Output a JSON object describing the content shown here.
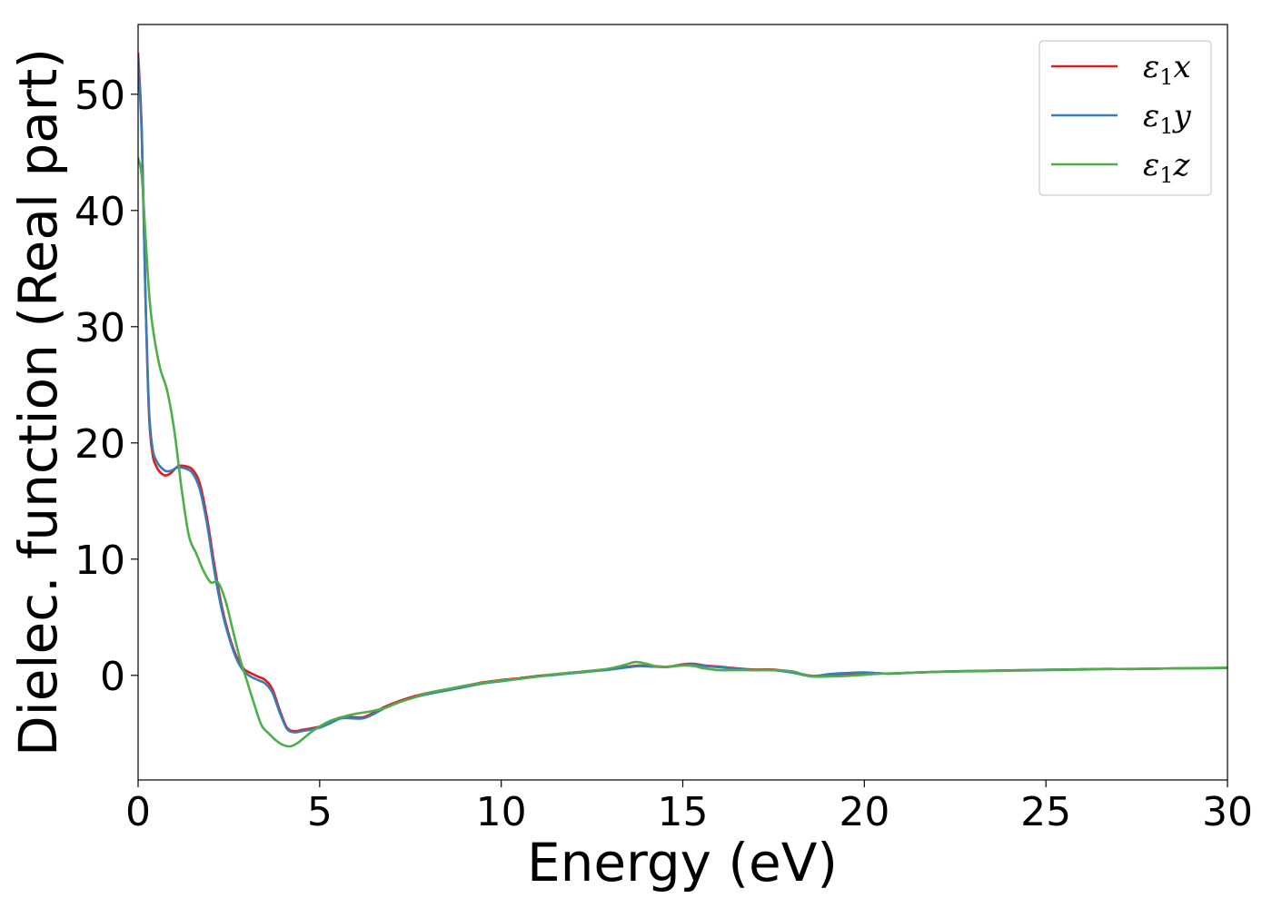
{
  "chart_data": {
    "type": "line",
    "title": "",
    "xlabel": "Energy (eV)",
    "ylabel": "Dielec. function (Real part)",
    "xlim": [
      0,
      30
    ],
    "ylim": [
      -9,
      56
    ],
    "xticks": [
      0,
      5,
      10,
      15,
      20,
      25,
      30
    ],
    "yticks": [
      0,
      10,
      20,
      30,
      40,
      50
    ],
    "grid": false,
    "legend_position": "top-right",
    "series": [
      {
        "name": "ε₁x",
        "legend": {
          "base": "ε",
          "sub": "1",
          "var": "x"
        },
        "color": "#e41a1c",
        "x": [
          0.0,
          0.1,
          0.2,
          0.3,
          0.4,
          0.5,
          0.6,
          0.75,
          0.9,
          1.1,
          1.3,
          1.5,
          1.7,
          1.9,
          2.1,
          2.3,
          2.5,
          2.7,
          2.9,
          3.1,
          3.3,
          3.5,
          3.7,
          3.9,
          4.1,
          4.3,
          4.5,
          4.7,
          5.0,
          5.3,
          5.6,
          5.9,
          6.2,
          6.5,
          6.8,
          7.2,
          7.6,
          8.0,
          8.5,
          9.0,
          9.5,
          10.0,
          10.5,
          11.0,
          11.5,
          12.0,
          12.5,
          13.0,
          13.5,
          13.8,
          14.2,
          14.6,
          15.0,
          15.3,
          15.6,
          16.0,
          16.5,
          17.0,
          17.5,
          18.0,
          18.3,
          18.6,
          19.0,
          19.5,
          20.0,
          20.3,
          20.7,
          21.5,
          22.5,
          23.5,
          24.5,
          25.5,
          26.5,
          27.5,
          28.5,
          29.5,
          30.0
        ],
        "y": [
          53.5,
          47.0,
          33.0,
          22.5,
          19.0,
          18.0,
          17.5,
          17.2,
          17.4,
          18.0,
          18.0,
          17.7,
          16.5,
          13.5,
          9.5,
          6.0,
          3.5,
          1.7,
          0.6,
          0.2,
          -0.1,
          -0.4,
          -1.2,
          -3.0,
          -4.5,
          -4.8,
          -4.7,
          -4.6,
          -4.4,
          -4.0,
          -3.6,
          -3.6,
          -3.6,
          -3.2,
          -2.7,
          -2.2,
          -1.8,
          -1.5,
          -1.2,
          -0.9,
          -0.6,
          -0.4,
          -0.25,
          -0.05,
          0.1,
          0.25,
          0.4,
          0.55,
          0.75,
          0.85,
          0.8,
          0.75,
          0.95,
          1.0,
          0.85,
          0.75,
          0.6,
          0.5,
          0.5,
          0.3,
          0.1,
          -0.05,
          0.05,
          0.1,
          0.2,
          0.2,
          0.15,
          0.25,
          0.35,
          0.4,
          0.45,
          0.5,
          0.55,
          0.55,
          0.6,
          0.62,
          0.65
        ]
      },
      {
        "name": "ε₁y",
        "legend": {
          "base": "ε",
          "sub": "1",
          "var": "y"
        },
        "color": "#377eb8",
        "x": [
          0.0,
          0.1,
          0.2,
          0.3,
          0.4,
          0.5,
          0.6,
          0.75,
          0.9,
          1.1,
          1.3,
          1.5,
          1.7,
          1.9,
          2.1,
          2.3,
          2.5,
          2.7,
          2.9,
          3.1,
          3.3,
          3.5,
          3.7,
          3.9,
          4.1,
          4.3,
          4.5,
          4.7,
          5.0,
          5.3,
          5.6,
          5.9,
          6.2,
          6.5,
          6.8,
          7.2,
          7.6,
          8.0,
          8.5,
          9.0,
          9.5,
          10.0,
          10.5,
          11.0,
          11.5,
          12.0,
          12.5,
          13.0,
          13.5,
          13.8,
          14.2,
          14.6,
          15.0,
          15.3,
          15.6,
          16.0,
          16.5,
          17.0,
          17.5,
          18.0,
          18.3,
          18.6,
          19.0,
          19.5,
          20.0,
          20.3,
          20.7,
          21.5,
          22.5,
          23.5,
          24.5,
          25.5,
          26.5,
          27.5,
          28.5,
          29.5,
          30.0
        ],
        "y": [
          53.0,
          46.5,
          33.0,
          23.0,
          19.5,
          18.5,
          18.0,
          17.6,
          17.6,
          17.9,
          17.8,
          17.4,
          16.0,
          13.0,
          9.0,
          5.7,
          3.3,
          1.5,
          0.4,
          -0.1,
          -0.4,
          -0.7,
          -1.5,
          -3.2,
          -4.6,
          -4.9,
          -4.8,
          -4.7,
          -4.5,
          -4.1,
          -3.7,
          -3.7,
          -3.7,
          -3.3,
          -2.8,
          -2.3,
          -1.9,
          -1.6,
          -1.3,
          -1.0,
          -0.7,
          -0.5,
          -0.3,
          -0.1,
          0.05,
          0.2,
          0.35,
          0.5,
          0.7,
          0.8,
          0.75,
          0.72,
          0.9,
          0.95,
          0.8,
          0.7,
          0.55,
          0.45,
          0.45,
          0.25,
          0.05,
          -0.1,
          0.1,
          0.2,
          0.25,
          0.2,
          0.15,
          0.25,
          0.35,
          0.4,
          0.45,
          0.5,
          0.55,
          0.55,
          0.6,
          0.62,
          0.65
        ]
      },
      {
        "name": "ε₁z",
        "legend": {
          "base": "ε",
          "sub": "1",
          "var": "z"
        },
        "color": "#4daf4a",
        "x": [
          0.0,
          0.1,
          0.2,
          0.3,
          0.4,
          0.6,
          0.8,
          1.0,
          1.2,
          1.4,
          1.6,
          1.8,
          2.0,
          2.2,
          2.4,
          2.6,
          2.8,
          3.0,
          3.2,
          3.4,
          3.6,
          3.8,
          4.0,
          4.2,
          4.4,
          4.6,
          4.8,
          5.0,
          5.3,
          5.6,
          6.0,
          6.4,
          6.8,
          7.2,
          7.6,
          8.0,
          8.5,
          9.0,
          9.5,
          10.0,
          10.5,
          11.0,
          11.5,
          12.0,
          12.5,
          13.0,
          13.4,
          13.7,
          14.0,
          14.3,
          14.6,
          15.0,
          15.3,
          15.6,
          16.0,
          16.5,
          17.0,
          17.5,
          18.0,
          18.3,
          18.6,
          19.0,
          19.5,
          20.0,
          20.5,
          21.0,
          22.0,
          23.0,
          24.0,
          25.0,
          26.0,
          27.0,
          28.0,
          29.0,
          30.0
        ],
        "y": [
          44.5,
          43.0,
          38.0,
          33.0,
          30.0,
          26.5,
          24.5,
          21.0,
          16.0,
          12.0,
          10.5,
          9.0,
          8.0,
          8.0,
          6.5,
          4.0,
          1.5,
          -0.5,
          -2.5,
          -4.3,
          -5.0,
          -5.6,
          -6.0,
          -6.1,
          -5.8,
          -5.3,
          -4.8,
          -4.4,
          -3.9,
          -3.6,
          -3.3,
          -3.1,
          -2.8,
          -2.3,
          -1.9,
          -1.5,
          -1.2,
          -0.9,
          -0.65,
          -0.45,
          -0.3,
          -0.1,
          0.1,
          0.25,
          0.4,
          0.6,
          0.9,
          1.15,
          1.0,
          0.75,
          0.75,
          0.85,
          0.8,
          0.6,
          0.45,
          0.45,
          0.45,
          0.45,
          0.35,
          0.1,
          -0.1,
          -0.1,
          -0.05,
          0.05,
          0.15,
          0.2,
          0.3,
          0.35,
          0.4,
          0.45,
          0.5,
          0.55,
          0.58,
          0.62,
          0.65
        ]
      }
    ]
  }
}
